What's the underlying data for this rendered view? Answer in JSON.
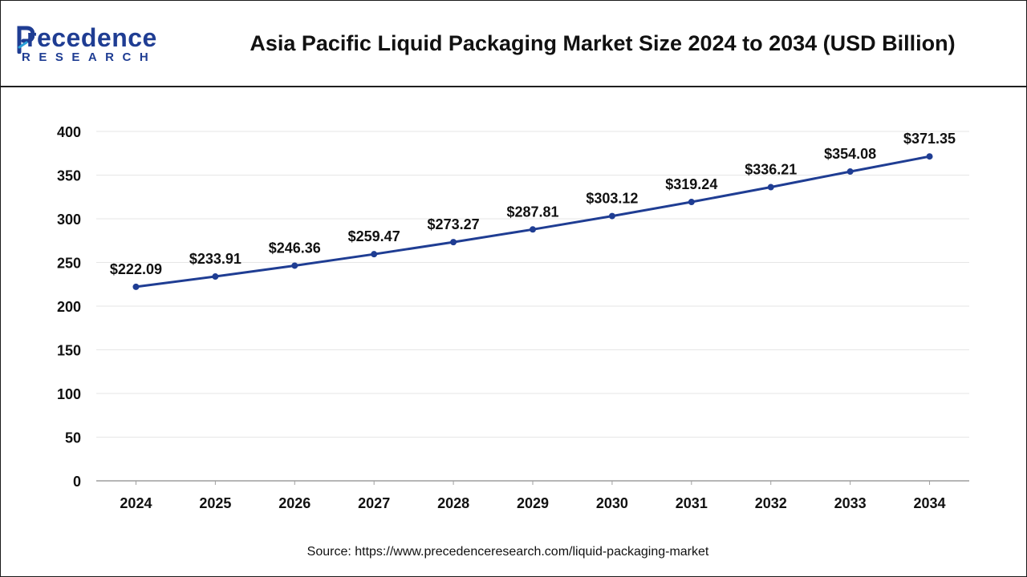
{
  "header": {
    "logo_main": "recedence",
    "logo_sub": "RESEARCH",
    "title": "Asia Pacific Liquid Packaging Market Size 2024 to 2034 (USD Billion)"
  },
  "source": "Source: https://www.precedenceresearch.com/liquid-packaging-market",
  "colors": {
    "line": "#1f3d93",
    "brand": "#1f3d93",
    "grid": "#e6e6e6",
    "axis": "#9e9e9e"
  },
  "chart_data": {
    "type": "line",
    "title": "Asia Pacific Liquid Packaging Market Size 2024 to 2034 (USD Billion)",
    "categories": [
      "2024",
      "2025",
      "2026",
      "2027",
      "2028",
      "2029",
      "2030",
      "2031",
      "2032",
      "2033",
      "2034"
    ],
    "values": [
      222.09,
      233.91,
      246.36,
      259.47,
      273.27,
      287.81,
      303.12,
      319.24,
      336.21,
      354.08,
      371.35
    ],
    "data_labels": [
      "$222.09",
      "$233.91",
      "$246.36",
      "$259.47",
      "$273.27",
      "$287.81",
      "$303.12",
      "$319.24",
      "$336.21",
      "$354.08",
      "$371.35"
    ],
    "yticks": [
      0,
      50,
      100,
      150,
      200,
      250,
      300,
      350,
      400
    ],
    "ylim": [
      0,
      400
    ],
    "xlabel": "",
    "ylabel": "",
    "grid": true,
    "legend": "none"
  }
}
